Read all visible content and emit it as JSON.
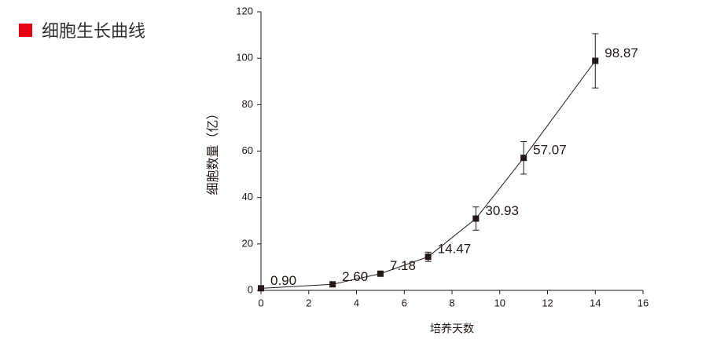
{
  "header": {
    "title": "细胞生长曲线"
  },
  "chart_data": {
    "type": "line",
    "xlabel": "培养天数",
    "ylabel": "细胞数量（亿）",
    "x": [
      0,
      3,
      5,
      7,
      9,
      11,
      14
    ],
    "values": [
      0.9,
      2.6,
      7.18,
      14.47,
      30.93,
      57.07,
      98.87
    ],
    "value_labels": [
      "0.90",
      "2.60",
      "7.18",
      "14.47",
      "30.93",
      "57.07",
      "98.87"
    ],
    "errors": [
      0.3,
      0.6,
      0.6,
      2,
      5,
      7,
      11.7
    ],
    "color": "#231815",
    "xlim": [
      0,
      16
    ],
    "xticks": [
      0,
      2,
      4,
      6,
      8,
      10,
      12,
      14,
      16
    ],
    "ylim": [
      0,
      120
    ],
    "yticks": [
      0,
      20,
      40,
      60,
      80,
      100,
      120
    ]
  }
}
